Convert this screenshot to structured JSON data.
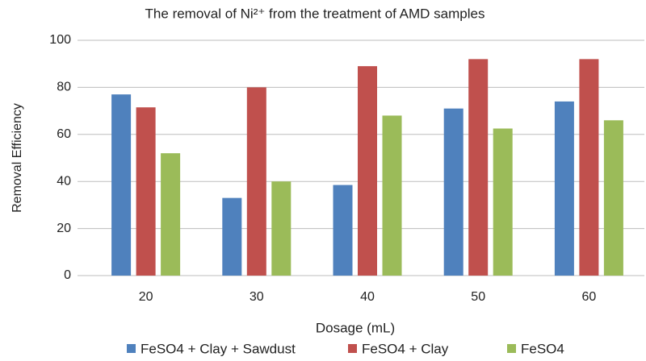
{
  "chart_data": {
    "type": "bar",
    "title": "The removal of Ni²⁺ from the treatment of AMD samples",
    "x_label": "Dosage (mL)",
    "y_label": "Removal Efficiency",
    "categories": [
      "20",
      "30",
      "40",
      "50",
      "60"
    ],
    "series": [
      {
        "name": "FeSO4 + Clay + Sawdust",
        "color": "#4f81bd",
        "values": [
          77,
          33,
          38.5,
          71,
          74
        ]
      },
      {
        "name": "FeSO4 + Clay",
        "color": "#c0504d",
        "values": [
          71.5,
          80,
          89,
          92,
          92
        ]
      },
      {
        "name": "FeSO4",
        "color": "#9bbb59",
        "values": [
          52,
          40,
          68,
          62.5,
          66
        ]
      }
    ],
    "ylim": [
      0,
      100
    ],
    "yticks": [
      0,
      20,
      40,
      60,
      80,
      100
    ],
    "grid": true,
    "legend": "bottom"
  }
}
